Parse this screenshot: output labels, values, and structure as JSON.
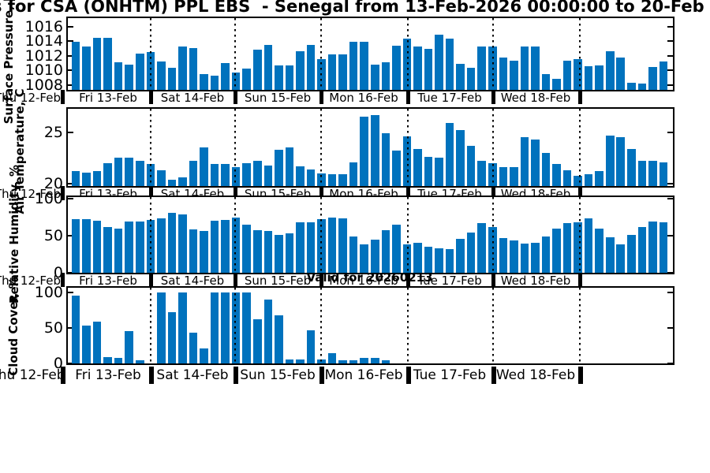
{
  "title": "s for CSA (ONHTM) PPL EBS  - Senegal from 13-Feb-2026 00:00:00 to 20-Feb",
  "annotation": "Valid for 20260213",
  "colors": {
    "bar": "#0072BD",
    "frame": "#000000"
  },
  "x_day_labels": [
    "Thu 12-Feb",
    "Fri 13-Feb",
    "Sat 14-Feb",
    "Sun 15-Feb",
    "Mon 16-Feb",
    "Tue 17-Feb",
    "Wed 18-Feb"
  ],
  "time_axis": {
    "interval_hours": 3,
    "bars_per_day": 8,
    "total_bars": 56,
    "grid": "dotted vertical lines at day boundaries"
  },
  "chart_data": [
    {
      "type": "bar",
      "name": "surface-pressure",
      "ylabel": "Surface Pressure, hPa",
      "yticks": [
        1008,
        1010,
        1012,
        1014,
        1016
      ],
      "ylim": [
        1007.3,
        1017.15
      ],
      "values": [
        1013.9,
        1013.3,
        1014.4,
        1014.4,
        1011.1,
        1010.8,
        1012.3,
        1012.5,
        1011.2,
        1010.3,
        1013.2,
        1013.0,
        1009.5,
        1009.2,
        1011.0,
        1009.7,
        1010.2,
        1012.8,
        1013.5,
        1010.7,
        1010.7,
        1012.6,
        1013.5,
        1011.5,
        1012.2,
        1012.2,
        1013.9,
        1013.9,
        1010.8,
        1011.1,
        1013.4,
        1014.3,
        1013.3,
        1012.9,
        1014.9,
        1014.3,
        1010.9,
        1010.3,
        1013.3,
        1013.3,
        1011.7,
        1011.3,
        1013.3,
        1013.3,
        1009.5,
        1008.8,
        1011.3,
        1011.5,
        1010.5,
        1010.7,
        1012.6,
        1011.7,
        1008.3,
        1008.2,
        1010.4,
        1011.2
      ]
    },
    {
      "type": "bar",
      "name": "air-temperature",
      "ylabel": "Air Temperature, C",
      "yticks": [
        20,
        25
      ],
      "ylim": [
        19.77,
        27.3
      ],
      "values": [
        21.2,
        21.1,
        21.2,
        22.0,
        22.5,
        22.5,
        22.2,
        21.9,
        21.3,
        20.4,
        20.6,
        22.2,
        23.5,
        21.9,
        21.9,
        21.6,
        22.0,
        22.2,
        21.8,
        23.3,
        23.5,
        21.7,
        21.4,
        21.0,
        20.9,
        20.9,
        22.1,
        26.5,
        26.7,
        24.9,
        23.2,
        24.6,
        23.4,
        22.6,
        22.5,
        25.9,
        25.2,
        23.7,
        22.2,
        22.0,
        21.6,
        21.6,
        24.5,
        24.3,
        23.0,
        21.9,
        21.3,
        20.8,
        20.9,
        21.2,
        24.7,
        24.5,
        23.4,
        22.2,
        22.2,
        22.1
      ]
    },
    {
      "type": "bar",
      "name": "relative-humidity",
      "ylabel": "Relative Humidity, %",
      "yticks": [
        0,
        50,
        100
      ],
      "ylim": [
        0,
        102
      ],
      "values": [
        72,
        72,
        70,
        62,
        60,
        69,
        69,
        71,
        73,
        81,
        79,
        58,
        56,
        70,
        71,
        74,
        65,
        57,
        56,
        51,
        53,
        68,
        68,
        72,
        74,
        73,
        49,
        38,
        45,
        57,
        65,
        38,
        40,
        35,
        33,
        32,
        46,
        54,
        67,
        62,
        47,
        44,
        39,
        40,
        49,
        59,
        67,
        68,
        73,
        60,
        48,
        38,
        51,
        62,
        69,
        68
      ]
    },
    {
      "type": "bar",
      "name": "cloud-cover",
      "ylabel": "Cloud Cover, %",
      "yticks": [
        0,
        50,
        100
      ],
      "ylim": [
        0,
        107
      ],
      "values": [
        96,
        53,
        59,
        9,
        8,
        46,
        4,
        0,
        100,
        72,
        100,
        43,
        21,
        100,
        100,
        100,
        100,
        62,
        90,
        68,
        6,
        6,
        47,
        6,
        15,
        5,
        5,
        8,
        8,
        4,
        0,
        0,
        0,
        0,
        0,
        0,
        0,
        0,
        0,
        0,
        0,
        0,
        0,
        0,
        0,
        0,
        0,
        0,
        0,
        0,
        0,
        0,
        0,
        0,
        0,
        0
      ]
    }
  ]
}
